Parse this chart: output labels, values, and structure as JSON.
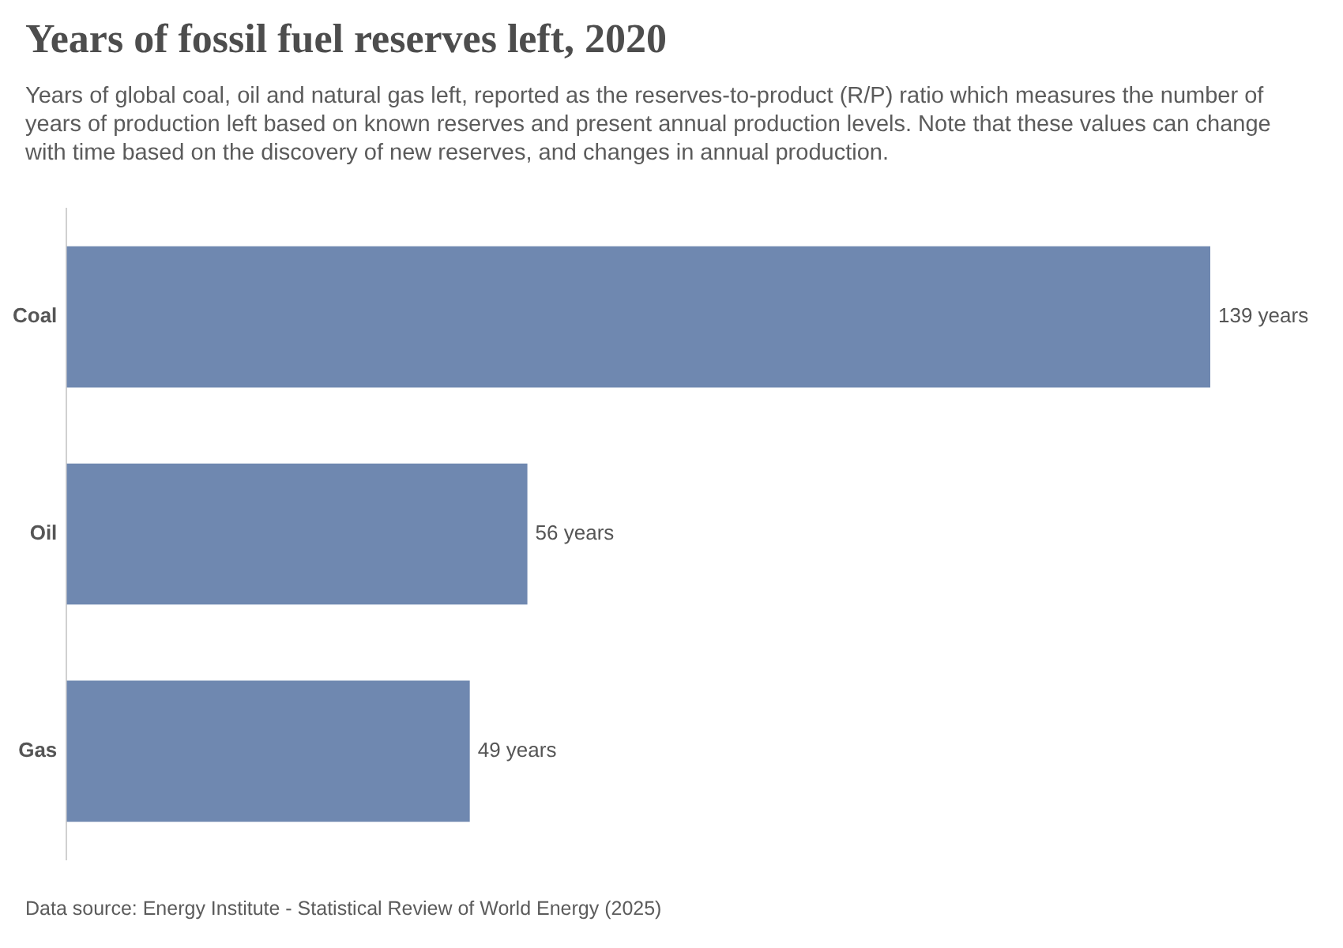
{
  "chart_data": {
    "type": "bar",
    "orientation": "horizontal",
    "title": "Years of fossil fuel reserves left, 2020",
    "subtitle": "Years of global coal, oil and natural gas left, reported as the reserves-to-product (R/P) ratio which measures the number of years of production left based on known reserves and present annual production levels. Note that these values can change with time based on the discovery of new reserves, and changes in annual production.",
    "categories": [
      "Coal",
      "Oil",
      "Gas"
    ],
    "values": [
      139,
      56,
      49
    ],
    "value_labels": [
      "139 years",
      "56 years",
      "49 years"
    ],
    "color": "#6f88b0",
    "legend": false,
    "annotations": [
      "Data source: Energy Institute - Statistical Review of World Energy (2025)"
    ]
  }
}
